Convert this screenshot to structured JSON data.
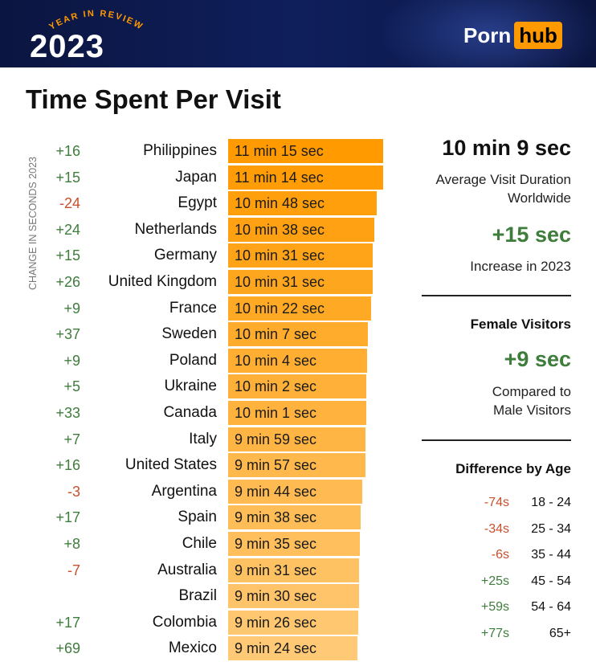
{
  "header": {
    "arc_text": "YEAR IN REVIEW",
    "year": "2023",
    "brand_left": "Porn",
    "brand_right": "hub",
    "brand_accent": "#ff9900",
    "background": "#0f1f5c"
  },
  "title": "Time Spent Per Visit",
  "side_label": "CHANGE IN SECONDS 2023",
  "colors": {
    "positive": "#3e7d3c",
    "negative": "#c8502d",
    "bar_top": "#ff9a00",
    "bar_bottom": "#ffc976"
  },
  "chart_data": {
    "type": "bar",
    "orientation": "horizontal",
    "title": "Time Spent Per Visit",
    "xlabel": "",
    "ylabel": "",
    "unit": "seconds",
    "categories": [
      "Philippines",
      "Japan",
      "Egypt",
      "Netherlands",
      "Germany",
      "United Kingdom",
      "France",
      "Sweden",
      "Poland",
      "Ukraine",
      "Canada",
      "Italy",
      "United States",
      "Argentina",
      "Spain",
      "Chile",
      "Australia",
      "Brazil",
      "Colombia",
      "Mexico"
    ],
    "values": [
      675,
      674,
      648,
      638,
      631,
      631,
      622,
      607,
      604,
      602,
      601,
      599,
      597,
      584,
      578,
      575,
      571,
      570,
      566,
      564
    ],
    "labels": [
      "11 min 15 sec",
      "11 min 14 sec",
      "10 min 48 sec",
      "10 min 38 sec",
      "10 min 31 sec",
      "10 min 31 sec",
      "10 min 22 sec",
      "10 min 7 sec",
      "10 min 4 sec",
      "10 min 2 sec",
      "10 min 1 sec",
      "9 min 59 sec",
      "9 min 57 sec",
      "9 min 44 sec",
      "9 min 38 sec",
      "9 min 35 sec",
      "9 min 31 sec",
      "9 min 30 sec",
      "9 min 26 sec",
      "9 min 24 sec"
    ],
    "changes": [
      "+16",
      "+15",
      "-24",
      "+24",
      "+15",
      "+26",
      "+9",
      "+37",
      "+9",
      "+5",
      "+33",
      "+7",
      "+16",
      "-3",
      "+17",
      "+8",
      "-7",
      "",
      "+17",
      "+69"
    ],
    "xlim": [
      0,
      675
    ]
  },
  "stats": {
    "avg_duration": "10 min 9 sec",
    "avg_label_1": "Average Visit Duration",
    "avg_label_2": "Worldwide",
    "increase": "+15 sec",
    "increase_label": "Increase in 2023",
    "female_heading": "Female Visitors",
    "female_value": "+9 sec",
    "female_label_1": "Compared to",
    "female_label_2": "Male Visitors",
    "age_heading": "Difference by Age",
    "age_rows": [
      {
        "change": "-74s",
        "range": "18 - 24"
      },
      {
        "change": "-34s",
        "range": "25 - 34"
      },
      {
        "change": "-6s",
        "range": "35 - 44"
      },
      {
        "change": "+25s",
        "range": "45 - 54"
      },
      {
        "change": "+59s",
        "range": "54 - 64"
      },
      {
        "change": "+77s",
        "range": "65+"
      }
    ]
  }
}
